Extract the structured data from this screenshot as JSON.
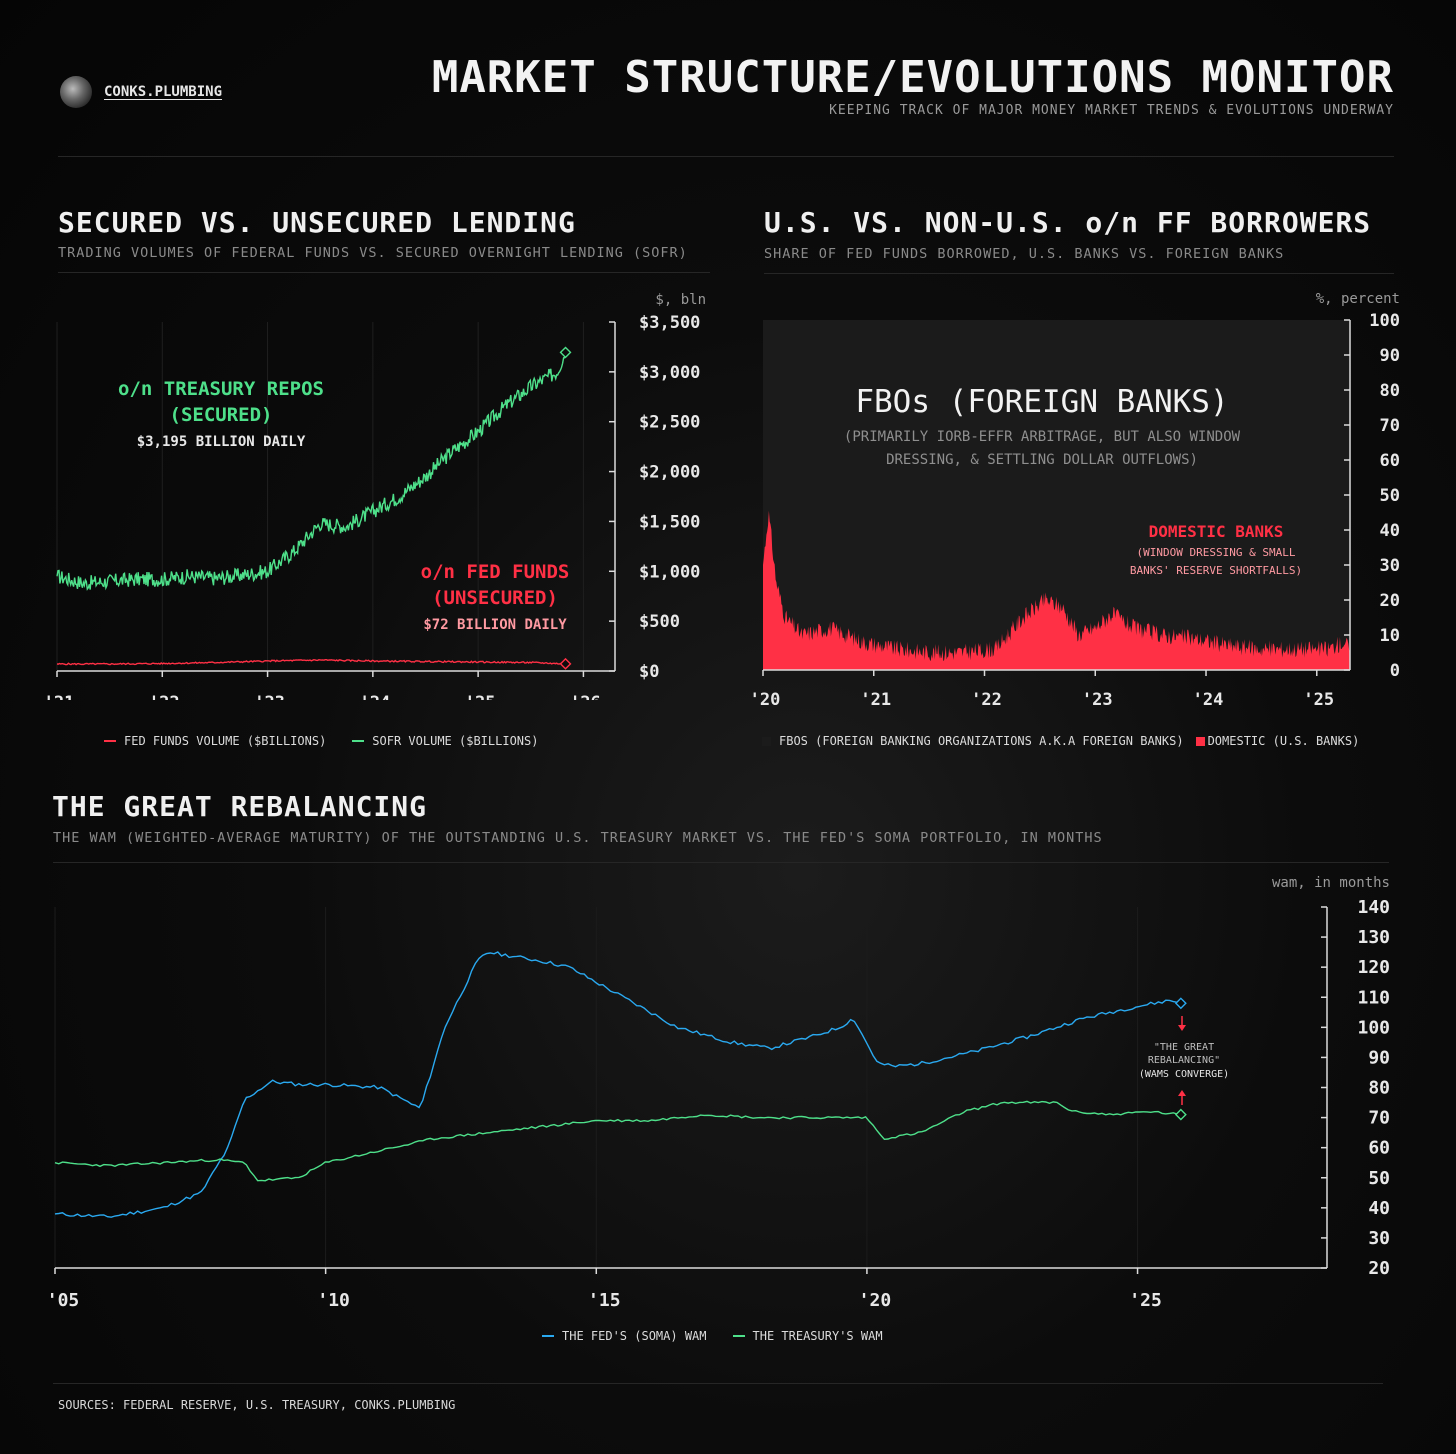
{
  "header": {
    "brand": "CONKS.PLUMBING",
    "title": "MARKET STRUCTURE/EVOLUTIONS MONITOR",
    "subtitle": "KEEPING TRACK OF MAJOR MONEY MARKET TRENDS & EVOLUTIONS UNDERWAY"
  },
  "footer": {
    "sources": "SOURCES: FEDERAL RESERVE, U.S. TREASURY, CONKS.PLUMBING"
  },
  "colors": {
    "green": "#4ee08a",
    "red": "#ff3045",
    "blue": "#2aa9f0",
    "fbo_fill": "#1b1b1b"
  },
  "panels": {
    "secured": {
      "title": "SECURED VS. UNSECURED LENDING",
      "subtitle": "TRADING VOLUMES OF FEDERAL FUNDS VS. SECURED OVERNIGHT LENDING (SOFR)",
      "unit": "$, bln",
      "ann_green_1": "o/n TREASURY REPOS",
      "ann_green_2": "(SECURED)",
      "ann_green_3": "$3,195 BILLION DAILY",
      "ann_red_1": "o/n FED FUNDS",
      "ann_red_2": "(UNSECURED)",
      "ann_red_3": "$72 BILLION DAILY",
      "legend_red": "FED FUNDS VOLUME ($BILLIONS)",
      "legend_green": "SOFR VOLUME ($BILLIONS)"
    },
    "borrowers": {
      "title": "U.S. VS. NON-U.S. o/n FF BORROWERS",
      "subtitle": "SHARE OF FED FUNDS BORROWED, U.S. BANKS VS. FOREIGN BANKS",
      "unit": "%, percent",
      "ann_fbo_1": "FBOs (FOREIGN BANKS)",
      "ann_fbo_2": "(PRIMARILY IORB-EFFR ARBITRAGE, BUT ALSO WINDOW",
      "ann_fbo_3": "DRESSING, & SETTLING DOLLAR OUTFLOWS)",
      "ann_dom_1": "DOMESTIC BANKS",
      "ann_dom_2": "(WINDOW DRESSING & SMALL",
      "ann_dom_3": "BANKS' RESERVE SHORTFALLS)",
      "legend_fbo": "FBOS (FOREIGN BANKING ORGANIZATIONS A.K.A FOREIGN BANKS)",
      "legend_dom": "DOMESTIC (U.S. BANKS)"
    },
    "rebalancing": {
      "title": "THE GREAT REBALANCING",
      "subtitle": "THE WAM (WEIGHTED-AVERAGE MATURITY) OF THE OUTSTANDING U.S. TREASURY MARKET VS. THE FED'S SOMA PORTFOLIO, IN MONTHS",
      "unit": "wam, in months",
      "ann_1": "\"THE GREAT",
      "ann_2": "REBALANCING\"",
      "ann_3": "(WAMS CONVERGE)",
      "legend_fed": "THE FED'S (SOMA) WAM",
      "legend_tsy": "THE TREASURY'S WAM"
    }
  },
  "chart_data": [
    {
      "type": "line",
      "title": "SECURED VS. UNSECURED LENDING",
      "ylabel": "$, bln",
      "ylim": [
        0,
        3500
      ],
      "y_ticks": [
        0,
        500,
        1000,
        1500,
        2000,
        2500,
        3000,
        3500
      ],
      "y_tick_labels": [
        "$0",
        "$500",
        "$1,000",
        "$1,500",
        "$2,000",
        "$2,500",
        "$3,000",
        "$3,500"
      ],
      "xlim": [
        2021.0,
        2026.3
      ],
      "x_ticks": [
        2021,
        2022,
        2023,
        2024,
        2025,
        2026
      ],
      "x_tick_labels": [
        "'21",
        "'22",
        "'23",
        "'24",
        "'25",
        "'26"
      ],
      "series": [
        {
          "name": "SOFR VOLUME ($BILLIONS)",
          "x": [
            2021.0,
            2021.25,
            2021.5,
            2021.75,
            2022.0,
            2022.25,
            2022.5,
            2022.75,
            2023.0,
            2023.25,
            2023.5,
            2023.75,
            2024.0,
            2024.25,
            2024.5,
            2024.75,
            2025.0,
            2025.25,
            2025.5,
            2025.75,
            2025.83
          ],
          "y": [
            950,
            880,
            900,
            920,
            920,
            950,
            930,
            960,
            1000,
            1200,
            1480,
            1450,
            1600,
            1750,
            1950,
            2200,
            2400,
            2650,
            2850,
            3000,
            3195
          ]
        },
        {
          "name": "FED FUNDS VOLUME ($BILLIONS)",
          "x": [
            2021.0,
            2021.5,
            2022.0,
            2022.5,
            2023.0,
            2023.5,
            2024.0,
            2024.5,
            2025.0,
            2025.5,
            2025.83
          ],
          "y": [
            70,
            70,
            75,
            85,
            100,
            110,
            100,
            95,
            90,
            85,
            72
          ]
        }
      ]
    },
    {
      "type": "area",
      "title": "U.S. VS. NON-U.S. o/n FF BORROWERS",
      "ylabel": "%, percent",
      "ylim": [
        0,
        100
      ],
      "y_ticks": [
        0,
        10,
        20,
        30,
        40,
        50,
        60,
        70,
        80,
        90,
        100
      ],
      "xlim": [
        2020.0,
        2025.3
      ],
      "x_ticks": [
        2020,
        2021,
        2022,
        2023,
        2024,
        2025
      ],
      "x_tick_labels": [
        "'20",
        "'21",
        "'22",
        "'23",
        "'24",
        "'25"
      ],
      "series": [
        {
          "name": "DOMESTIC (U.S. BANKS)",
          "x": [
            2020.0,
            2020.05,
            2020.12,
            2020.2,
            2020.35,
            2020.6,
            2020.9,
            2021.2,
            2021.5,
            2021.8,
            2022.1,
            2022.35,
            2022.55,
            2022.7,
            2022.85,
            2023.0,
            2023.15,
            2023.35,
            2023.6,
            2023.9,
            2024.2,
            2024.5,
            2024.8,
            2025.1,
            2025.25,
            2025.3
          ],
          "y": [
            30,
            45,
            25,
            15,
            10,
            12,
            8,
            6,
            5,
            5,
            6,
            15,
            20,
            18,
            10,
            12,
            16,
            12,
            10,
            9,
            7,
            6,
            6,
            6,
            8,
            6
          ]
        },
        {
          "name": "FBOS (FOREIGN BANKING ORGANIZATIONS A.K.A FOREIGN BANKS)",
          "x": [
            2020.0,
            2020.05,
            2020.12,
            2020.2,
            2020.35,
            2020.6,
            2020.9,
            2021.2,
            2021.5,
            2021.8,
            2022.1,
            2022.35,
            2022.55,
            2022.7,
            2022.85,
            2023.0,
            2023.15,
            2023.35,
            2023.6,
            2023.9,
            2024.2,
            2024.5,
            2024.8,
            2025.1,
            2025.25,
            2025.3
          ],
          "y": [
            70,
            55,
            75,
            85,
            90,
            88,
            92,
            94,
            95,
            95,
            94,
            85,
            80,
            82,
            90,
            88,
            84,
            88,
            90,
            91,
            93,
            94,
            94,
            94,
            92,
            94
          ]
        }
      ]
    },
    {
      "type": "line",
      "title": "THE GREAT REBALANCING",
      "ylabel": "wam, in months",
      "ylim": [
        20,
        140
      ],
      "y_ticks": [
        20,
        30,
        40,
        50,
        60,
        70,
        80,
        90,
        100,
        110,
        120,
        130,
        140
      ],
      "xlim": [
        2005.0,
        2028.5
      ],
      "x_ticks": [
        2005,
        2010,
        2015,
        2020,
        2025
      ],
      "x_tick_labels": [
        "'05",
        "'10",
        "'15",
        "'20",
        "'25"
      ],
      "series": [
        {
          "name": "THE FED'S (SOMA) WAM",
          "x": [
            2005.0,
            2006.0,
            2007.0,
            2007.7,
            2008.2,
            2008.5,
            2009.0,
            2009.5,
            2010.0,
            2011.0,
            2011.75,
            2012.2,
            2012.8,
            2013.0,
            2014.0,
            2014.5,
            2015.5,
            2016.5,
            2017.5,
            2018.2,
            2019.0,
            2019.5,
            2019.75,
            2020.2,
            2020.5,
            2021.0,
            2022.0,
            2023.0,
            2024.0,
            2025.0,
            2025.6,
            2025.8
          ],
          "y": [
            38,
            37,
            40,
            45,
            60,
            76,
            82,
            81,
            81,
            80,
            73,
            100,
            122,
            125,
            122,
            120,
            110,
            100,
            95,
            93,
            97,
            100,
            103,
            88,
            87,
            88,
            92,
            97,
            103,
            107,
            109,
            108
          ]
        },
        {
          "name": "THE TREASURY'S WAM",
          "x": [
            2005.0,
            2006.0,
            2007.0,
            2008.0,
            2008.5,
            2008.75,
            2009.5,
            2010.0,
            2011.0,
            2012.0,
            2013.0,
            2014.0,
            2015.0,
            2016.0,
            2017.0,
            2018.0,
            2019.0,
            2020.0,
            2020.3,
            2021.0,
            2021.8,
            2022.5,
            2023.5,
            2023.8,
            2024.5,
            2025.2,
            2025.8
          ],
          "y": [
            55,
            54,
            55,
            56,
            55,
            49,
            50,
            55,
            59,
            63,
            65,
            67,
            69,
            69,
            71,
            70,
            70,
            70,
            63,
            65,
            72,
            75,
            75,
            72,
            71,
            72,
            71
          ]
        }
      ]
    }
  ]
}
